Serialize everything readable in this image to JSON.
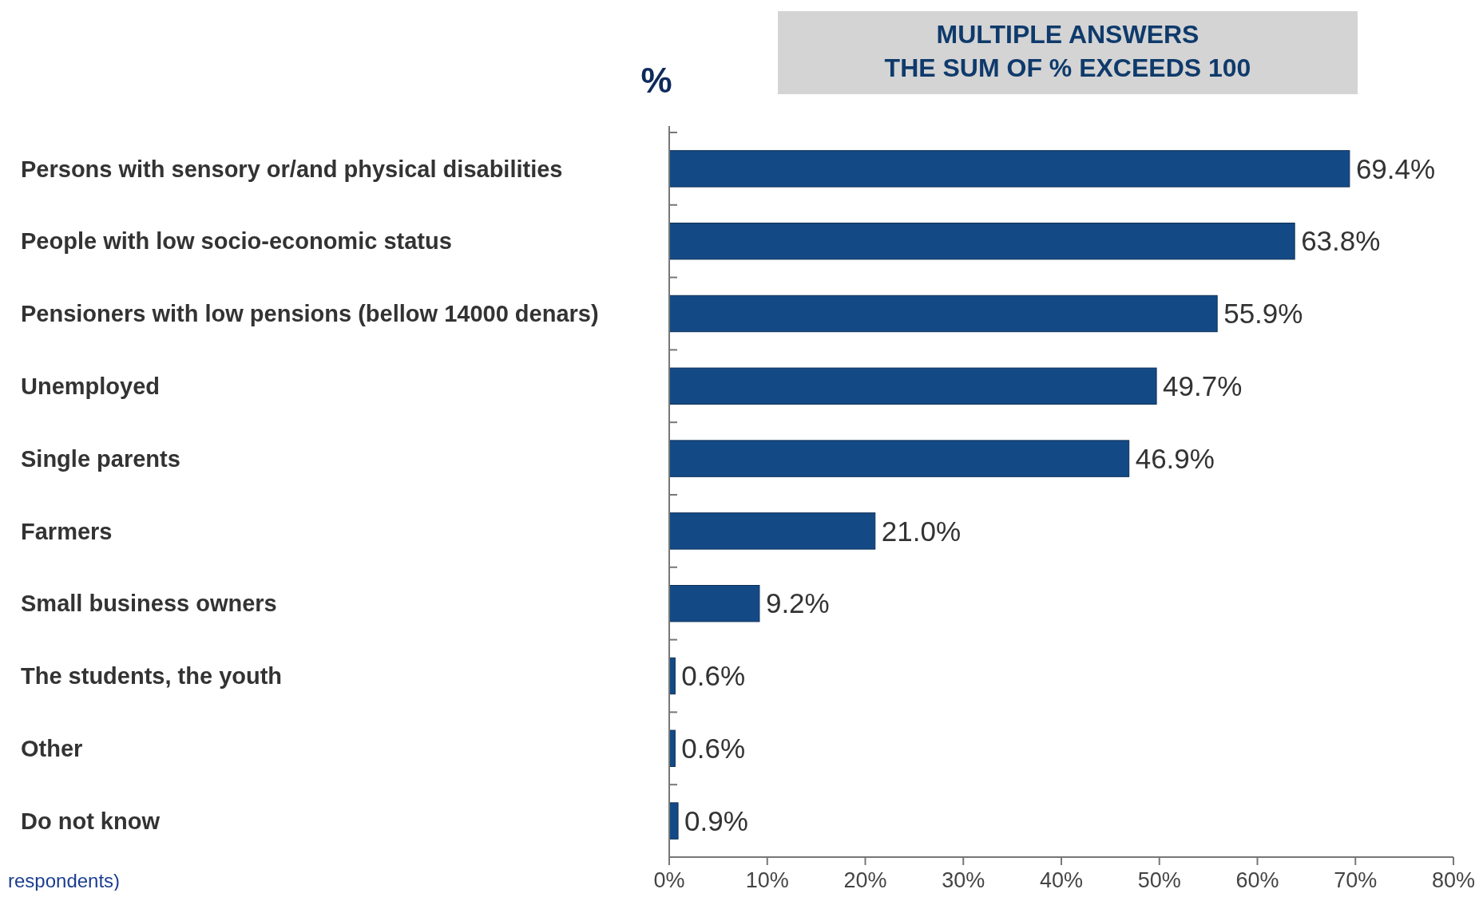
{
  "chart_data": {
    "type": "bar",
    "orientation": "horizontal",
    "xlabel": "%",
    "categories": [
      "Persons with sensory or/and physical disabilities",
      "People with low socio-economic status",
      "Pensioners with low pensions (bellow 14000 denars)",
      "Unemployed",
      "Single parents",
      "Farmers",
      "Small business owners",
      "The students, the youth",
      "Other",
      "Do not know"
    ],
    "values": [
      69.4,
      63.8,
      55.9,
      49.7,
      46.9,
      21.0,
      9.2,
      0.6,
      0.6,
      0.9
    ],
    "value_labels": [
      "69.4%",
      "63.8%",
      "55.9%",
      "49.7%",
      "46.9%",
      "21.0%",
      "9.2%",
      "0.6%",
      "0.6%",
      "0.9%"
    ],
    "color": "#134a86",
    "xlim": [
      0,
      80
    ],
    "xticks": [
      {
        "value": 0,
        "label": "0%"
      },
      {
        "value": 10,
        "label": "10%"
      },
      {
        "value": 20,
        "label": "20%"
      },
      {
        "value": 30,
        "label": "30%"
      },
      {
        "value": 40,
        "label": "40%"
      },
      {
        "value": 50,
        "label": "50%"
      },
      {
        "value": 60,
        "label": "60%"
      },
      {
        "value": 70,
        "label": "70%"
      },
      {
        "value": 80,
        "label": "80%"
      }
    ],
    "annotations": [
      "MULTIPLE ANSWERS\nTHE SUM OF % EXCEEDS 100",
      "respondents)"
    ]
  }
}
